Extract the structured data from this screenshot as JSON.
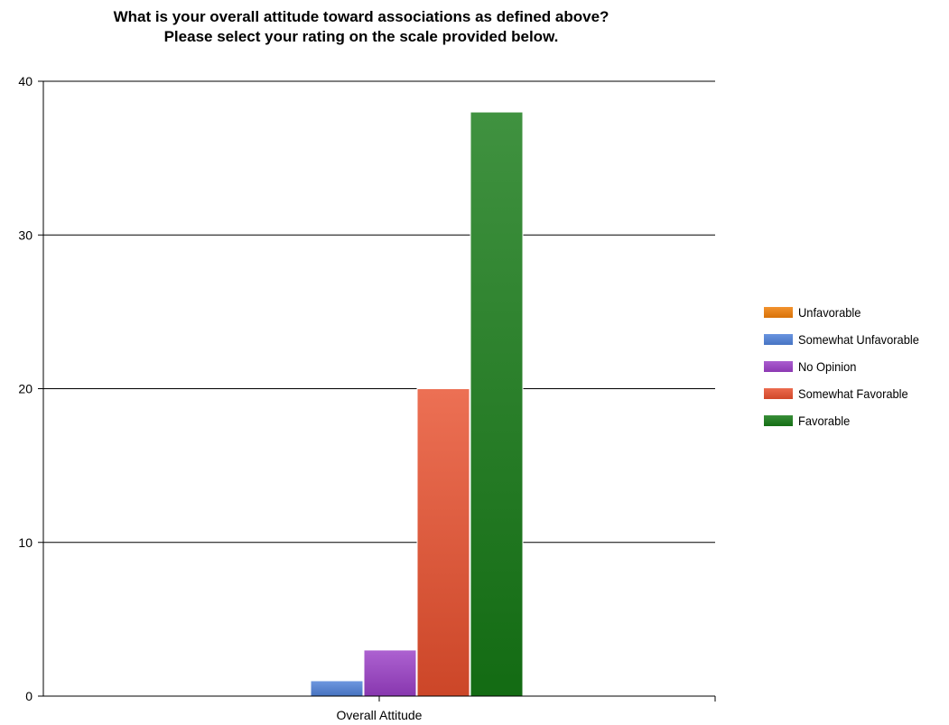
{
  "chart_data": {
    "type": "bar",
    "title_lines": [
      "What is your overall attitude toward associations as defined above?",
      "Please select your rating on the scale provided below."
    ],
    "categories": [
      "Overall Attitude"
    ],
    "series": [
      {
        "name": "Unfavorable",
        "values": [
          0
        ],
        "color": "#f07f09"
      },
      {
        "name": "Somewhat Unfavorable",
        "values": [
          1
        ],
        "color": "#4f81d9"
      },
      {
        "name": "No Opinion",
        "values": [
          3
        ],
        "color": "#9b3fc7"
      },
      {
        "name": "Somewhat Favorable",
        "values": [
          20
        ],
        "color": "#e8502e"
      },
      {
        "name": "Favorable",
        "values": [
          38
        ],
        "color": "#167a16"
      }
    ],
    "ylim": [
      0,
      40
    ],
    "yticks": [
      0,
      10,
      20,
      30,
      40
    ],
    "grid": true,
    "legend_position": "right"
  }
}
